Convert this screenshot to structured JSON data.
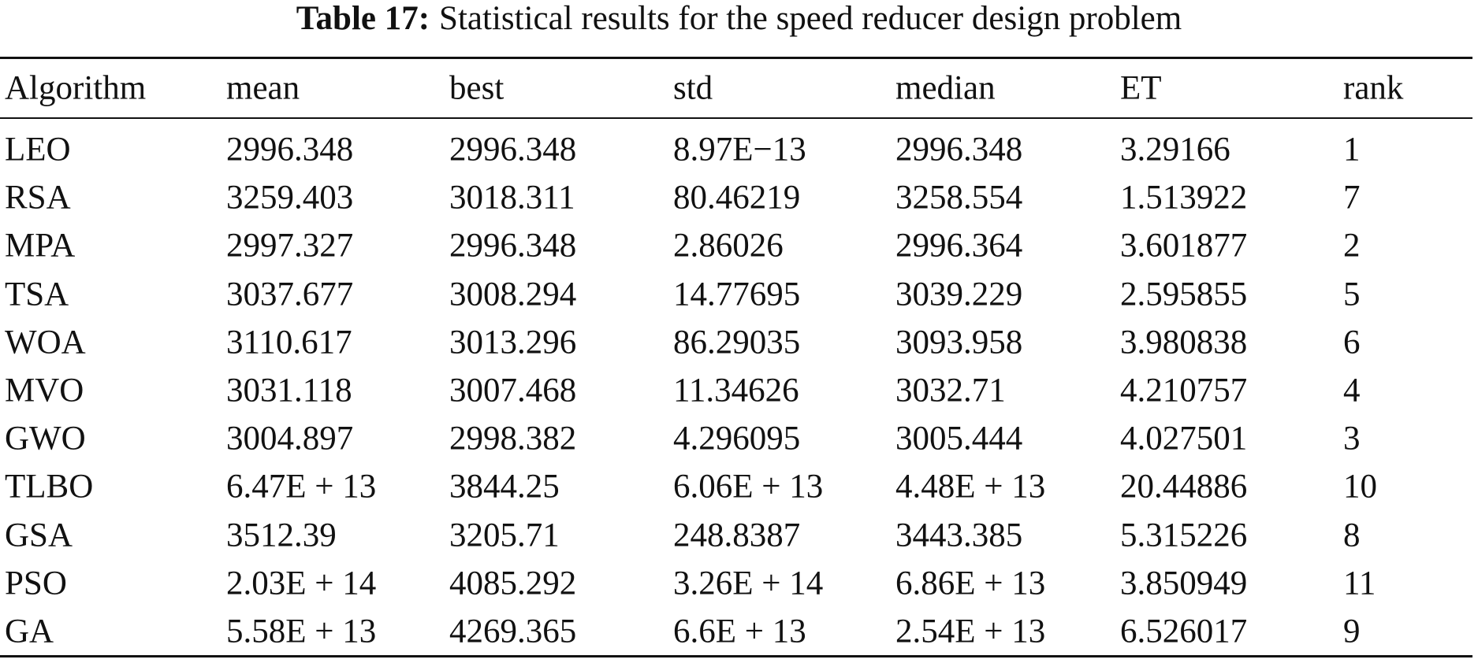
{
  "caption": {
    "label": "Table 17:",
    "text": "Statistical results for the speed reducer design problem"
  },
  "table": {
    "header": [
      "Algorithm",
      "mean",
      "best",
      "std",
      "median",
      "ET",
      "rank"
    ],
    "rows": [
      [
        "LEO",
        "2996.348",
        "2996.348",
        "8.97E−13",
        "2996.348",
        "3.29166",
        "1"
      ],
      [
        "RSA",
        "3259.403",
        "3018.311",
        "80.46219",
        "3258.554",
        "1.513922",
        "7"
      ],
      [
        "MPA",
        "2997.327",
        "2996.348",
        "2.86026",
        "2996.364",
        "3.601877",
        "2"
      ],
      [
        "TSA",
        "3037.677",
        "3008.294",
        "14.77695",
        "3039.229",
        "2.595855",
        "5"
      ],
      [
        "WOA",
        "3110.617",
        "3013.296",
        "86.29035",
        "3093.958",
        "3.980838",
        "6"
      ],
      [
        "MVO",
        "3031.118",
        "3007.468",
        "11.34626",
        "3032.71",
        "4.210757",
        "4"
      ],
      [
        "GWO",
        "3004.897",
        "2998.382",
        "4.296095",
        "3005.444",
        "4.027501",
        "3"
      ],
      [
        "TLBO",
        "6.47E + 13",
        "3844.25",
        "6.06E + 13",
        "4.48E + 13",
        "20.44886",
        "10"
      ],
      [
        "GSA",
        "3512.39",
        "3205.71",
        "248.8387",
        "3443.385",
        "5.315226",
        "8"
      ],
      [
        "PSO",
        "2.03E + 14",
        "4085.292",
        "3.26E + 14",
        "6.86E + 13",
        "3.850949",
        "11"
      ],
      [
        "GA",
        "5.58E + 13",
        "4269.365",
        "6.6E + 13",
        "2.54E + 13",
        "6.526017",
        "9"
      ]
    ]
  }
}
